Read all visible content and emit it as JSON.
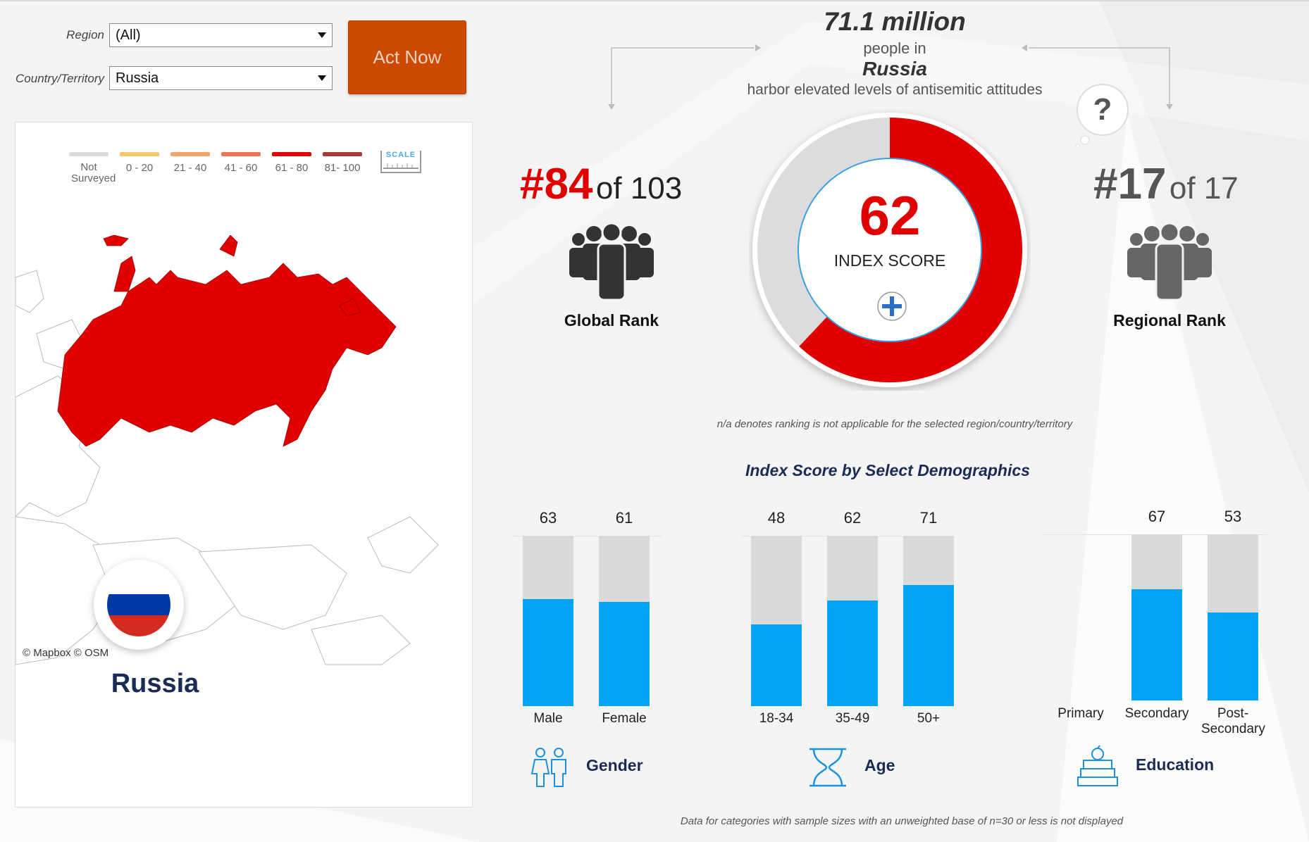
{
  "filters": {
    "region_label": "Region",
    "region_value": "(All)",
    "country_label": "Country/Territory",
    "country_value": "Russia"
  },
  "act_button": "Act Now",
  "legend": [
    {
      "label": "Not Surveyed",
      "color": "#dcdcdc"
    },
    {
      "label": "0 - 20",
      "color": "#f6c86b"
    },
    {
      "label": "21 - 40",
      "color": "#f5a46a"
    },
    {
      "label": "41 - 60",
      "color": "#ef7556"
    },
    {
      "label": "61 - 80",
      "color": "#e00000"
    },
    {
      "label": "81- 100",
      "color": "#a93a3a"
    }
  ],
  "scale_label": "SCALE",
  "map_attribution": "© Mapbox  © OSM",
  "country_name": "Russia",
  "flag_colors": [
    "#ffffff",
    "#0039a6",
    "#d52b1e"
  ],
  "headline": {
    "count": "71.1 million",
    "people_in": "people in",
    "country": "Russia",
    "description": "harbor elevated levels of antisemitic attitudes"
  },
  "global_rank": {
    "rank": "#84",
    "of": "of 103",
    "label": "Global Rank"
  },
  "regional_rank": {
    "rank": "#17",
    "of": "of 17",
    "label": "Regional Rank"
  },
  "index_score": {
    "value": 62,
    "label": "INDEX SCORE"
  },
  "na_note": "n/a denotes ranking is not applicable for the selected region/country/territory",
  "footnote": "Data for categories with sample sizes with an unweighted base of n=30 or less is not displayed",
  "chart_data": {
    "type": "bar",
    "title": "Index Score by Select Demographics",
    "ylim": [
      0,
      100
    ],
    "groups": [
      {
        "name": "Gender",
        "categories": [
          "Male",
          "Female"
        ],
        "values": [
          63,
          61
        ]
      },
      {
        "name": "Age",
        "categories": [
          "18-34",
          "35-49",
          "50+"
        ],
        "values": [
          48,
          62,
          71
        ]
      },
      {
        "name": "Education",
        "categories": [
          "Primary",
          "Secondary",
          "Post-Secondary"
        ],
        "values": [
          null,
          67,
          53
        ]
      }
    ]
  }
}
